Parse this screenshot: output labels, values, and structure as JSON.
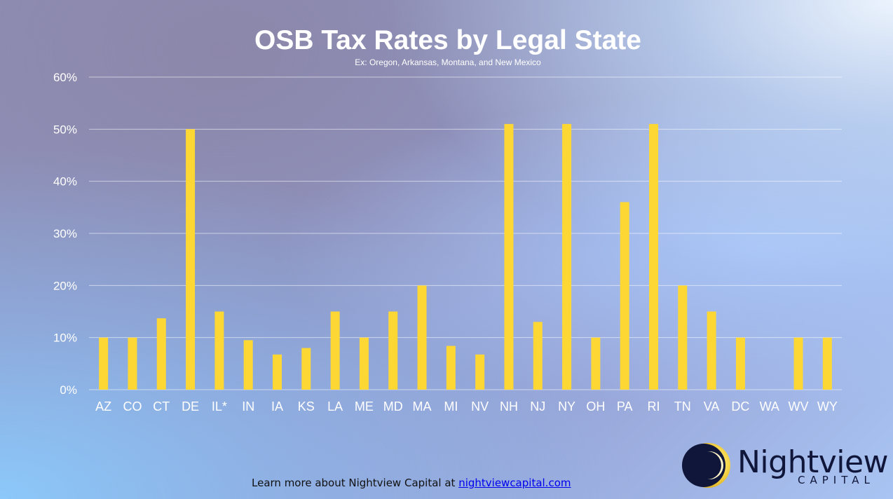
{
  "chart_data": {
    "type": "bar",
    "title": "OSB Tax Rates by Legal State",
    "subtitle": "Ex: Oregon, Arkansas, Montana, and New Mexico",
    "xlabel": "",
    "ylabel": "",
    "ylim": [
      0,
      60
    ],
    "yticks": [
      "0%",
      "10%",
      "20%",
      "30%",
      "40%",
      "50%",
      "60%"
    ],
    "categories": [
      "AZ",
      "CO",
      "CT",
      "DE",
      "IL*",
      "IN",
      "IA",
      "KS",
      "LA",
      "ME",
      "MD",
      "MA",
      "MI",
      "NV",
      "NH",
      "NJ",
      "NY",
      "OH",
      "PA",
      "RI",
      "TN",
      "VA",
      "DC",
      "WA",
      "WV",
      "WY"
    ],
    "values": [
      10,
      10,
      13.7,
      50,
      15,
      9.5,
      6.75,
      8,
      15,
      10,
      15,
      20,
      8.4,
      6.75,
      51,
      13,
      51,
      10,
      36,
      51,
      20,
      15,
      10,
      0,
      10,
      10
    ],
    "grid": true,
    "legend": "none",
    "bar_color": "#fdd835"
  },
  "footer": {
    "text": "Learn more about Nightview Capital at",
    "link": "nightviewcapital.com"
  },
  "logo": {
    "name": "Nightview",
    "sub": "CAPITAL"
  }
}
